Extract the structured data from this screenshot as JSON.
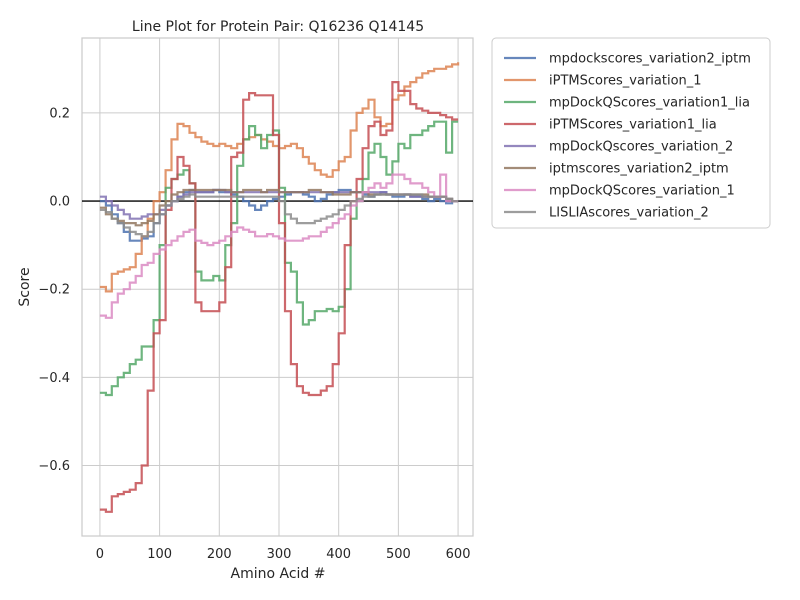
{
  "chart_data": {
    "type": "line",
    "title": "Line Plot for Protein Pair: Q16236 Q14145",
    "xlabel": "Amino Acid #",
    "ylabel": "Score",
    "xlim": [
      -30,
      625
    ],
    "ylim": [
      -0.76,
      0.37
    ],
    "xticks": [
      0,
      100,
      200,
      300,
      400,
      500,
      600
    ],
    "xtick_labels": [
      "0",
      "100",
      "200",
      "300",
      "400",
      "500",
      "600"
    ],
    "yticks": [
      -0.6,
      -0.4,
      -0.2,
      0.0,
      0.2
    ],
    "ytick_labels": [
      "−0.6",
      "−0.4",
      "−0.2",
      "0.0",
      "0.2"
    ],
    "grid": true,
    "zero_line": true,
    "legend_position": "outside-upper-right",
    "series": [
      {
        "name": "mpdockscores_variation2_iptm",
        "color": "#4c72b0",
        "x": [
          0,
          10,
          20,
          30,
          40,
          50,
          60,
          70,
          80,
          90,
          100,
          110,
          120,
          130,
          140,
          150,
          160,
          170,
          180,
          190,
          200,
          210,
          220,
          230,
          240,
          250,
          260,
          270,
          280,
          290,
          300,
          310,
          320,
          330,
          340,
          350,
          360,
          370,
          380,
          390,
          400,
          410,
          420,
          430,
          440,
          450,
          460,
          470,
          480,
          490,
          500,
          510,
          520,
          530,
          540,
          550,
          560,
          570,
          580,
          590,
          600
        ],
        "y": [
          0.0,
          -0.01,
          -0.03,
          -0.05,
          -0.07,
          -0.09,
          -0.09,
          -0.085,
          -0.08,
          -0.05,
          -0.03,
          -0.01,
          0.0,
          0.01,
          0.02,
          0.025,
          0.02,
          0.02,
          0.02,
          0.025,
          0.02,
          0.02,
          0.015,
          0.01,
          0.0,
          -0.01,
          -0.02,
          -0.01,
          0.0,
          0.005,
          0.01,
          0.015,
          0.02,
          0.02,
          0.015,
          0.01,
          0.0,
          0.005,
          0.015,
          0.02,
          0.025,
          0.025,
          0.02,
          0.02,
          0.015,
          0.01,
          0.015,
          0.02,
          0.015,
          0.01,
          0.01,
          0.015,
          0.01,
          0.01,
          0.005,
          0.0,
          0.005,
          0.0,
          -0.005,
          0.0,
          0.0
        ]
      },
      {
        "name": "iPTMScores_variation_1",
        "color": "#dd8452",
        "x": [
          0,
          10,
          20,
          30,
          40,
          50,
          60,
          70,
          80,
          90,
          100,
          110,
          120,
          130,
          140,
          150,
          160,
          170,
          180,
          190,
          200,
          210,
          220,
          230,
          240,
          250,
          260,
          270,
          280,
          290,
          300,
          310,
          320,
          330,
          340,
          350,
          360,
          370,
          380,
          390,
          400,
          410,
          420,
          430,
          440,
          450,
          460,
          470,
          480,
          490,
          500,
          510,
          520,
          530,
          540,
          550,
          560,
          570,
          580,
          590,
          600
        ],
        "y": [
          -0.195,
          -0.205,
          -0.165,
          -0.16,
          -0.155,
          -0.15,
          -0.12,
          -0.08,
          -0.04,
          0.0,
          0.02,
          0.07,
          0.14,
          0.175,
          0.17,
          0.155,
          0.145,
          0.135,
          0.13,
          0.125,
          0.13,
          0.125,
          0.12,
          0.13,
          0.14,
          0.145,
          0.15,
          0.14,
          0.135,
          0.125,
          0.12,
          0.125,
          0.13,
          0.12,
          0.1,
          0.085,
          0.07,
          0.06,
          0.055,
          0.07,
          0.09,
          0.1,
          0.16,
          0.2,
          0.21,
          0.23,
          0.19,
          0.17,
          0.175,
          0.23,
          0.24,
          0.26,
          0.27,
          0.28,
          0.29,
          0.295,
          0.3,
          0.3,
          0.305,
          0.31,
          0.315
        ]
      },
      {
        "name": "mpDockQScores_variation1_lia",
        "color": "#55a868",
        "x": [
          0,
          10,
          20,
          30,
          40,
          50,
          60,
          70,
          80,
          90,
          100,
          110,
          120,
          130,
          140,
          150,
          160,
          170,
          180,
          190,
          200,
          210,
          220,
          230,
          240,
          250,
          260,
          270,
          280,
          290,
          300,
          310,
          320,
          330,
          340,
          350,
          360,
          370,
          380,
          390,
          400,
          410,
          420,
          430,
          440,
          450,
          460,
          470,
          480,
          490,
          500,
          510,
          520,
          530,
          540,
          550,
          560,
          570,
          580,
          590,
          600
        ],
        "y": [
          -0.435,
          -0.44,
          -0.42,
          -0.4,
          -0.39,
          -0.37,
          -0.36,
          -0.33,
          -0.33,
          -0.27,
          -0.1,
          0.03,
          0.05,
          0.06,
          0.07,
          0.04,
          -0.16,
          -0.18,
          -0.18,
          -0.17,
          -0.18,
          -0.1,
          -0.05,
          0.08,
          0.14,
          0.17,
          0.15,
          0.12,
          0.15,
          0.16,
          0.03,
          -0.14,
          -0.16,
          -0.23,
          -0.28,
          -0.27,
          -0.25,
          -0.25,
          -0.245,
          -0.25,
          -0.24,
          -0.2,
          -0.04,
          0.0,
          0.05,
          0.11,
          0.13,
          0.1,
          0.06,
          0.09,
          0.13,
          0.12,
          0.15,
          0.15,
          0.16,
          0.17,
          0.18,
          0.18,
          0.11,
          0.18,
          0.18
        ]
      },
      {
        "name": "iPTMScores_variation1_lia",
        "color": "#c44e52",
        "x": [
          0,
          10,
          20,
          30,
          40,
          50,
          60,
          70,
          80,
          90,
          100,
          110,
          120,
          130,
          140,
          150,
          160,
          170,
          180,
          190,
          200,
          210,
          220,
          230,
          240,
          250,
          260,
          270,
          280,
          290,
          300,
          310,
          320,
          330,
          340,
          350,
          360,
          370,
          380,
          390,
          400,
          410,
          420,
          430,
          440,
          450,
          460,
          470,
          480,
          490,
          500,
          510,
          520,
          530,
          540,
          550,
          560,
          570,
          580,
          590,
          600
        ],
        "y": [
          -0.7,
          -0.705,
          -0.67,
          -0.665,
          -0.66,
          -0.655,
          -0.64,
          -0.6,
          -0.43,
          -0.3,
          -0.27,
          -0.02,
          0.05,
          0.1,
          0.08,
          0.04,
          -0.23,
          -0.25,
          -0.25,
          -0.25,
          -0.23,
          -0.15,
          0.1,
          0.11,
          0.23,
          0.245,
          0.24,
          0.24,
          0.24,
          0.15,
          -0.05,
          -0.25,
          -0.37,
          -0.42,
          -0.435,
          -0.44,
          -0.44,
          -0.43,
          -0.42,
          -0.37,
          -0.3,
          -0.1,
          0.0,
          0.05,
          0.12,
          0.17,
          0.18,
          0.15,
          0.16,
          0.27,
          0.25,
          0.25,
          0.22,
          0.21,
          0.205,
          0.2,
          0.2,
          0.195,
          0.19,
          0.185,
          0.185
        ]
      },
      {
        "name": "mpDockQscores_variation_2",
        "color": "#8172b3",
        "x": [
          0,
          10,
          20,
          30,
          40,
          50,
          60,
          70,
          80,
          90,
          100,
          110,
          120,
          130,
          140,
          150,
          160,
          170,
          180,
          190,
          200,
          210,
          220,
          230,
          240,
          250,
          260,
          270,
          280,
          290,
          300,
          310,
          320,
          330,
          340,
          350,
          360,
          370,
          380,
          390,
          400,
          410,
          420,
          430,
          440,
          450,
          460,
          470,
          480,
          490,
          500,
          510,
          520,
          530,
          540,
          550,
          560,
          570,
          580,
          590,
          600
        ],
        "y": [
          0.01,
          0.0,
          -0.01,
          -0.02,
          -0.03,
          -0.04,
          -0.04,
          -0.035,
          -0.03,
          -0.03,
          -0.02,
          -0.01,
          0.0,
          0.01,
          0.015,
          0.02,
          0.02,
          0.02,
          0.02,
          0.025,
          0.025,
          0.02,
          0.02,
          0.02,
          0.02,
          0.02,
          0.02,
          0.02,
          0.02,
          0.02,
          0.02,
          0.02,
          0.02,
          0.02,
          0.02,
          0.02,
          0.02,
          0.02,
          0.02,
          0.02,
          0.02,
          0.02,
          0.02,
          0.02,
          0.02,
          0.02,
          0.02,
          0.02,
          0.015,
          0.015,
          0.015,
          0.015,
          0.01,
          0.01,
          0.01,
          0.01,
          0.01,
          0.01,
          0.005,
          0.0,
          0.0
        ]
      },
      {
        "name": "iptmscores_variation2_iptm",
        "color": "#937860",
        "x": [
          0,
          10,
          20,
          30,
          40,
          50,
          60,
          70,
          80,
          90,
          100,
          110,
          120,
          130,
          140,
          150,
          160,
          170,
          180,
          190,
          200,
          210,
          220,
          230,
          240,
          250,
          260,
          270,
          280,
          290,
          300,
          310,
          320,
          330,
          340,
          350,
          360,
          370,
          380,
          390,
          400,
          410,
          420,
          430,
          440,
          450,
          460,
          470,
          480,
          490,
          500,
          510,
          520,
          530,
          540,
          550,
          560,
          570,
          580,
          590,
          600
        ],
        "y": [
          -0.015,
          -0.03,
          -0.04,
          -0.045,
          -0.05,
          -0.05,
          -0.055,
          -0.05,
          -0.045,
          -0.03,
          -0.01,
          0.0,
          0.015,
          0.02,
          0.025,
          0.025,
          0.025,
          0.025,
          0.025,
          0.025,
          0.025,
          0.025,
          0.02,
          0.02,
          0.025,
          0.025,
          0.025,
          0.02,
          0.025,
          0.025,
          0.02,
          0.02,
          0.02,
          0.02,
          0.02,
          0.025,
          0.025,
          0.02,
          0.02,
          0.015,
          0.015,
          0.015,
          0.02,
          0.02,
          0.02,
          0.015,
          0.015,
          0.015,
          0.015,
          0.015,
          0.015,
          0.015,
          0.015,
          0.015,
          0.015,
          0.01,
          0.01,
          0.01,
          0.005,
          0.0,
          0.0
        ]
      },
      {
        "name": "mpDockQScores_variation_1",
        "color": "#da8bc3",
        "x": [
          0,
          10,
          20,
          30,
          40,
          50,
          60,
          70,
          80,
          90,
          100,
          110,
          120,
          130,
          140,
          150,
          160,
          170,
          180,
          190,
          200,
          210,
          220,
          230,
          240,
          250,
          260,
          270,
          280,
          290,
          300,
          310,
          320,
          330,
          340,
          350,
          360,
          370,
          380,
          390,
          400,
          410,
          420,
          430,
          440,
          450,
          460,
          470,
          480,
          490,
          500,
          510,
          520,
          530,
          540,
          550,
          560,
          570,
          580,
          590,
          600
        ],
        "y": [
          -0.26,
          -0.265,
          -0.23,
          -0.21,
          -0.2,
          -0.185,
          -0.17,
          -0.145,
          -0.14,
          -0.12,
          -0.11,
          -0.1,
          -0.09,
          -0.08,
          -0.07,
          -0.065,
          -0.09,
          -0.095,
          -0.1,
          -0.095,
          -0.09,
          -0.08,
          -0.07,
          -0.06,
          -0.065,
          -0.07,
          -0.08,
          -0.08,
          -0.075,
          -0.08,
          -0.085,
          -0.09,
          -0.09,
          -0.09,
          -0.085,
          -0.08,
          -0.08,
          -0.07,
          -0.06,
          -0.05,
          -0.04,
          -0.03,
          -0.01,
          0.0,
          0.02,
          0.03,
          0.04,
          0.03,
          0.04,
          0.06,
          0.06,
          0.05,
          0.04,
          0.04,
          0.03,
          0.02,
          0.01,
          0.06,
          0.0,
          0.0,
          0.0
        ]
      },
      {
        "name": "LISLIAscores_variation_2",
        "color": "#8c8c8c",
        "x": [
          0,
          10,
          20,
          30,
          40,
          50,
          60,
          70,
          80,
          90,
          100,
          110,
          120,
          130,
          140,
          150,
          160,
          170,
          180,
          190,
          200,
          210,
          220,
          230,
          240,
          250,
          260,
          270,
          280,
          290,
          300,
          310,
          320,
          330,
          340,
          350,
          360,
          370,
          380,
          390,
          400,
          410,
          420,
          430,
          440,
          450,
          460,
          470,
          480,
          490,
          500,
          510,
          520,
          530,
          540,
          550,
          560,
          570,
          580,
          590,
          600
        ],
        "y": [
          -0.02,
          -0.025,
          -0.04,
          -0.05,
          -0.06,
          -0.07,
          -0.075,
          -0.08,
          -0.07,
          -0.05,
          -0.03,
          -0.01,
          0.0,
          0.005,
          0.01,
          0.015,
          0.01,
          0.01,
          0.01,
          0.01,
          0.01,
          0.01,
          0.01,
          0.01,
          0.01,
          0.01,
          0.01,
          0.01,
          0.01,
          0.01,
          0.0,
          -0.03,
          -0.04,
          -0.05,
          -0.05,
          -0.05,
          -0.045,
          -0.04,
          -0.035,
          -0.03,
          -0.02,
          -0.01,
          0.0,
          0.005,
          0.01,
          0.01,
          0.015,
          0.015,
          0.015,
          0.015,
          0.015,
          0.015,
          0.015,
          0.015,
          0.01,
          0.01,
          0.01,
          0.01,
          0.005,
          0.0,
          0.0
        ]
      }
    ]
  }
}
